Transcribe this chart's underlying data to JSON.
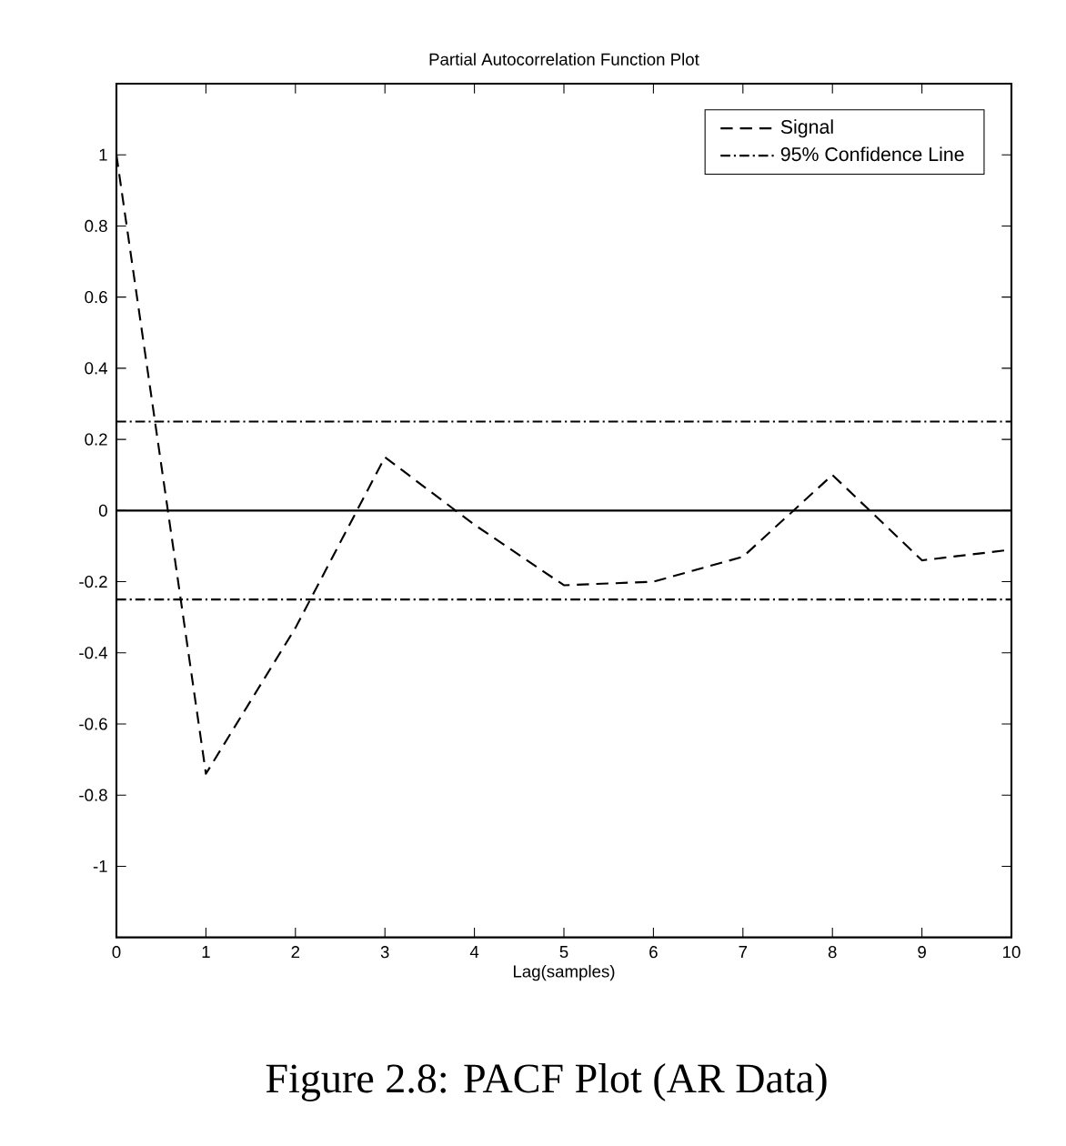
{
  "chart_data": {
    "type": "line",
    "title": "Partial Autocorrelation Function Plot",
    "xlabel": "Lag(samples)",
    "x": [
      0,
      1,
      2,
      3,
      4,
      5,
      6,
      7,
      8,
      9,
      10
    ],
    "series": [
      {
        "name": "Signal",
        "color": "#000000",
        "line_style": "dashed",
        "values": [
          1.0,
          -0.74,
          -0.33,
          0.15,
          -0.04,
          -0.21,
          -0.2,
          -0.13,
          0.1,
          -0.14,
          -0.11
        ]
      },
      {
        "name": "95% Confidence Line",
        "color": "#000000",
        "line_style": "dashdot",
        "values": [
          0.25,
          0.25,
          0.25,
          0.25,
          0.25,
          0.25,
          0.25,
          0.25,
          0.25,
          0.25,
          0.25
        ]
      },
      {
        "color": "#000000",
        "line_style": "dashdot",
        "values": [
          -0.25,
          -0.25,
          -0.25,
          -0.25,
          -0.25,
          -0.25,
          -0.25,
          -0.25,
          -0.25,
          -0.25,
          -0.25
        ]
      }
    ],
    "ref_lines": [
      {
        "axis": "y",
        "value": 0,
        "color": "#000000",
        "line_style": "solid"
      }
    ],
    "xlim": [
      0,
      10
    ],
    "ylim": [
      -1.2,
      1.2
    ],
    "xticks": [
      0,
      1,
      2,
      3,
      4,
      5,
      6,
      7,
      8,
      9,
      10
    ],
    "yticks": [
      -1,
      -0.8,
      -0.6,
      -0.4,
      -0.2,
      0,
      0.2,
      0.4,
      0.6,
      0.8,
      1
    ],
    "grid": false,
    "legend": "top right",
    "marker": "none",
    "annotations": [
      "Figure 2.8: PACF Plot (AR Data)"
    ]
  }
}
